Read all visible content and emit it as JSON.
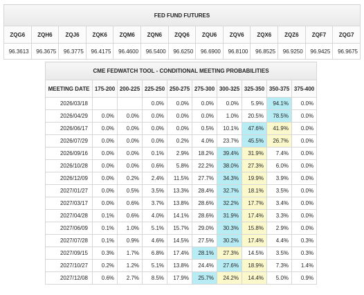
{
  "futures": {
    "title": "FED FUND FUTURES",
    "contracts": [
      "ZQG6",
      "ZQH6",
      "ZQJ6",
      "ZQK6",
      "ZQM6",
      "ZQN6",
      "ZQQ6",
      "ZQU6",
      "ZQV6",
      "ZQX6",
      "ZQZ6",
      "ZQF7",
      "ZQG7"
    ],
    "prices": [
      "96.3613",
      "96.3675",
      "96.3775",
      "96.4175",
      "96.4600",
      "96.5400",
      "96.6250",
      "96.6900",
      "96.8100",
      "96.8525",
      "96.9250",
      "96.9425",
      "96.9675"
    ]
  },
  "fedwatch": {
    "title": "CME FEDWATCH TOOL - CONDITIONAL MEETING PROBABILITIES",
    "columns": [
      "MEETING DATE",
      "175-200",
      "200-225",
      "225-250",
      "250-275",
      "275-300",
      "300-325",
      "325-350",
      "350-375",
      "375-400"
    ],
    "rows": [
      {
        "date": "2026/03/18",
        "values": [
          "",
          "",
          "0.0%",
          "0.0%",
          "0.0%",
          "0.0%",
          "5.9%",
          "94.1%",
          "0.0%"
        ],
        "max": 7,
        "mid": []
      },
      {
        "date": "2026/04/29",
        "values": [
          "0.0%",
          "0.0%",
          "0.0%",
          "0.0%",
          "0.0%",
          "1.0%",
          "20.5%",
          "78.5%",
          "0.0%"
        ],
        "max": 7,
        "mid": []
      },
      {
        "date": "2026/06/17",
        "values": [
          "0.0%",
          "0.0%",
          "0.0%",
          "0.0%",
          "0.5%",
          "10.1%",
          "47.6%",
          "41.9%",
          "0.0%"
        ],
        "max": 6,
        "mid": [
          7
        ]
      },
      {
        "date": "2026/07/29",
        "values": [
          "0.0%",
          "0.0%",
          "0.0%",
          "0.2%",
          "4.0%",
          "23.7%",
          "45.5%",
          "26.7%",
          "0.0%"
        ],
        "max": 6,
        "mid": [
          7
        ]
      },
      {
        "date": "2026/09/16",
        "values": [
          "0.0%",
          "0.0%",
          "0.1%",
          "2.9%",
          "18.2%",
          "39.4%",
          "31.9%",
          "7.4%",
          "0.0%"
        ],
        "max": 5,
        "mid": [
          6
        ]
      },
      {
        "date": "2026/10/28",
        "values": [
          "0.0%",
          "0.0%",
          "0.6%",
          "5.8%",
          "22.2%",
          "38.0%",
          "27.3%",
          "6.0%",
          "0.0%"
        ],
        "max": 5,
        "mid": [
          6
        ]
      },
      {
        "date": "2026/12/09",
        "values": [
          "0.0%",
          "0.2%",
          "2.4%",
          "11.5%",
          "27.7%",
          "34.3%",
          "19.9%",
          "3.9%",
          "0.0%"
        ],
        "max": 5,
        "mid": [
          6
        ]
      },
      {
        "date": "2027/01/27",
        "values": [
          "0.0%",
          "0.5%",
          "3.5%",
          "13.3%",
          "28.4%",
          "32.7%",
          "18.1%",
          "3.5%",
          "0.0%"
        ],
        "max": 5,
        "mid": [
          6
        ]
      },
      {
        "date": "2027/03/17",
        "values": [
          "0.0%",
          "0.6%",
          "3.7%",
          "13.8%",
          "28.6%",
          "32.2%",
          "17.7%",
          "3.4%",
          "0.0%"
        ],
        "max": 5,
        "mid": [
          6
        ]
      },
      {
        "date": "2027/04/28",
        "values": [
          "0.1%",
          "0.6%",
          "4.0%",
          "14.1%",
          "28.6%",
          "31.9%",
          "17.4%",
          "3.3%",
          "0.0%"
        ],
        "max": 5,
        "mid": [
          6
        ]
      },
      {
        "date": "2027/06/09",
        "values": [
          "0.1%",
          "1.0%",
          "5.1%",
          "15.7%",
          "29.0%",
          "30.3%",
          "15.8%",
          "2.9%",
          "0.0%"
        ],
        "max": 5,
        "mid": [
          6
        ]
      },
      {
        "date": "2027/07/28",
        "values": [
          "0.1%",
          "0.9%",
          "4.6%",
          "14.5%",
          "27.5%",
          "30.2%",
          "17.4%",
          "4.4%",
          "0.3%"
        ],
        "max": 5,
        "mid": [
          6
        ]
      },
      {
        "date": "2027/09/15",
        "values": [
          "0.3%",
          "1.7%",
          "6.8%",
          "17.4%",
          "28.1%",
          "27.3%",
          "14.5%",
          "3.5%",
          "0.3%"
        ],
        "max": 4,
        "mid": [
          5
        ]
      },
      {
        "date": "2027/10/27",
        "values": [
          "0.2%",
          "1.2%",
          "5.1%",
          "13.8%",
          "24.4%",
          "27.6%",
          "18.9%",
          "7.3%",
          "1.4%"
        ],
        "max": 5,
        "mid": [
          6
        ]
      },
      {
        "date": "2027/12/08",
        "values": [
          "0.6%",
          "2.7%",
          "8.5%",
          "17.9%",
          "25.7%",
          "24.2%",
          "14.4%",
          "5.0%",
          "0.9%"
        ],
        "max": 4,
        "mid": [
          5,
          6
        ]
      }
    ]
  },
  "colors": {
    "highlight_max": "#b8ecf5",
    "highlight_mid": "#fbf8cc",
    "border": "#d6d6d6"
  }
}
